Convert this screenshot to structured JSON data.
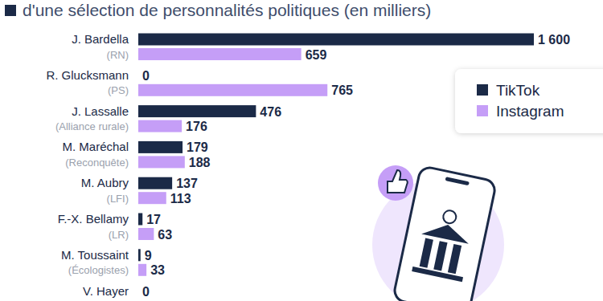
{
  "chart_data": {
    "type": "bar",
    "orientation": "horizontal",
    "title": "d'une sélection de personnalités politiques (en milliers)",
    "categories": [
      "J. Bardella",
      "R. Glucksmann",
      "J. Lassalle",
      "M. Maréchal",
      "M. Aubry",
      "F.-X. Bellamy",
      "M. Toussaint",
      "V. Hayer"
    ],
    "parties": [
      "(RN)",
      "(PS)",
      "(Alliance rurale)",
      "(Reconquête)",
      "(LFI)",
      "(LR)",
      "(Écologistes)",
      null
    ],
    "series": [
      {
        "name": "TikTok",
        "color": "#1b2a47",
        "values": [
          1600,
          0,
          476,
          179,
          137,
          17,
          9,
          0
        ],
        "value_labels": [
          "1 600",
          "0",
          "476",
          "179",
          "137",
          "17",
          "9",
          "0"
        ]
      },
      {
        "name": "Instagram",
        "color": "#c59ef7",
        "values": [
          659,
          765,
          176,
          188,
          113,
          63,
          33,
          null
        ],
        "value_labels": [
          "659",
          "765",
          "176",
          "188",
          "113",
          "63",
          "33",
          null
        ]
      }
    ],
    "xlim": [
      0,
      1600
    ],
    "data_labels": true,
    "tick_labels": false,
    "grid": false,
    "legend": "right"
  }
}
